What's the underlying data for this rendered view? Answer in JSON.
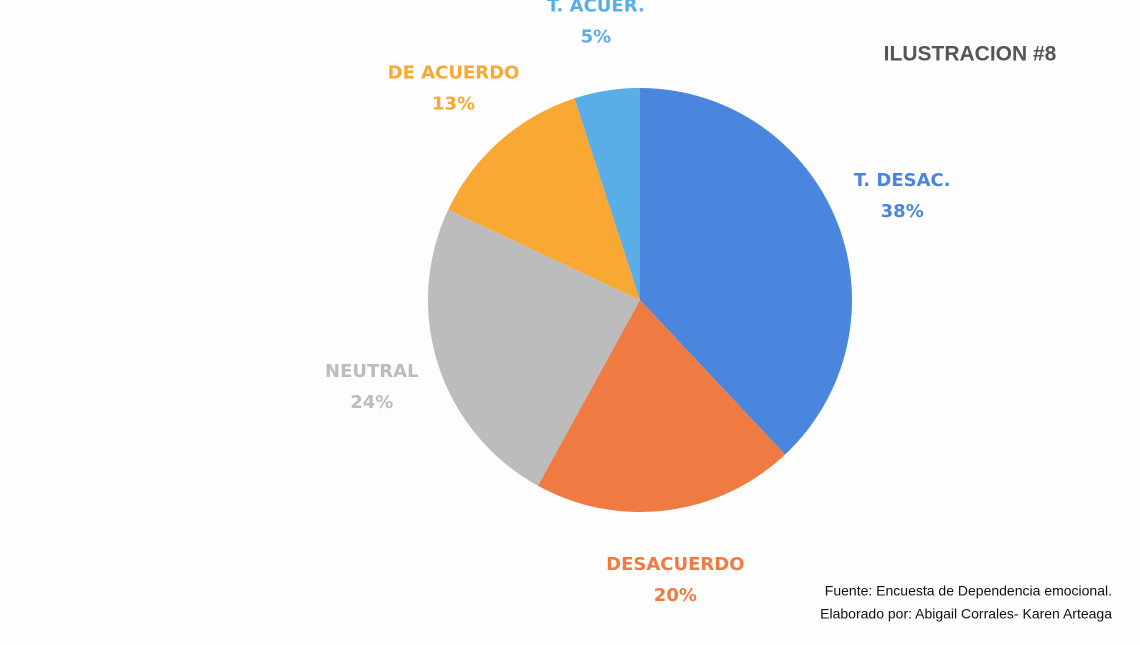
{
  "chart_data": {
    "type": "pie",
    "title": "ILUSTRACION #8",
    "categories": [
      "T. DESAC.",
      "DESACUERDO",
      "NEUTRAL",
      "DE ACUERDO",
      "T. ACUER."
    ],
    "values": [
      38,
      20,
      24,
      13,
      5
    ],
    "value_labels": [
      "38%",
      "20%",
      "24%",
      "13%",
      "5%"
    ],
    "colors": [
      "#4a86de",
      "#ef7b42",
      "#bcbcbc",
      "#f8a833",
      "#5aaee8"
    ],
    "notes": [
      "Fuente: Encuesta de Dependencia emocional.",
      "Elaborado por: Abigail Corrales- Karen Arteaga"
    ]
  }
}
